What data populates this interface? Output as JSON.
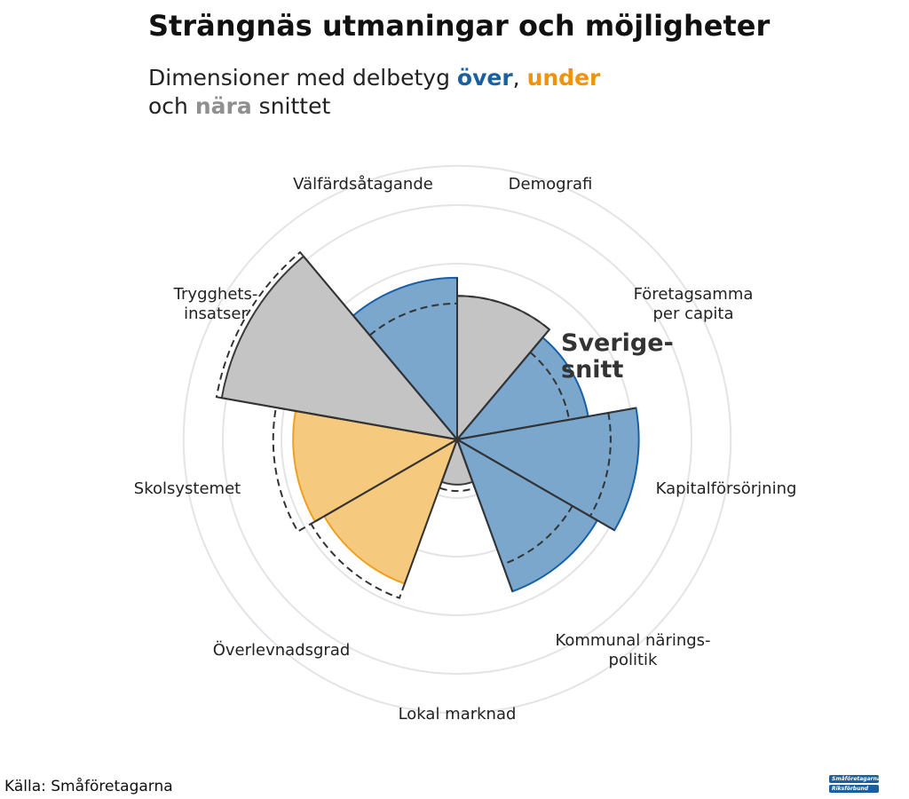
{
  "title": "Strängnäs utmaningar och möjligheter",
  "subtitle": {
    "prefix": "Dimensioner med delbetyg ",
    "over": "över",
    "comma": ", ",
    "under": "under",
    "line2_prefix": "och ",
    "nara": "nära",
    "suffix": " snittet"
  },
  "source": "Källa: Småföretagarna",
  "logo": {
    "line1": "Småföretagarnas",
    "line2": "Riksförbund"
  },
  "colors": {
    "over_fill": "#7ba7cd",
    "over_edge": "#1560a8",
    "under_fill": "#f5c97e",
    "under_edge": "#f0a020",
    "near_fill": "#c4c4c4",
    "near_edge": "#3a3a3a",
    "grid": "#e4e4e8"
  },
  "chart_data": {
    "type": "polar-bar",
    "title": "Strängnäs utmaningar och möjligheter",
    "average_label": "Sverige-\nsnitt",
    "categories": [
      "Demografi",
      "Företagsamma\nper capita",
      "Kapitalförsörjning",
      "Kommunal närings-\npolitik",
      "Lokal marknad",
      "Överlevnadsgrad",
      "Skolsystemet",
      "Trygghets-\ninsatser",
      "Välfärdsåtagande"
    ],
    "values": [
      2.45,
      2.27,
      3.1,
      2.76,
      0.77,
      2.62,
      2.8,
      4.08,
      2.76
    ],
    "averages": [
      2.45,
      1.94,
      2.62,
      2.27,
      0.88,
      2.88,
      3.14,
      4.17,
      2.32
    ],
    "status": [
      "near",
      "over",
      "over",
      "over",
      "near",
      "under",
      "under",
      "near",
      "over"
    ],
    "rlim": [
      0,
      4.67
    ],
    "grid_rings": [
      1,
      2,
      3,
      4,
      4.67
    ]
  }
}
